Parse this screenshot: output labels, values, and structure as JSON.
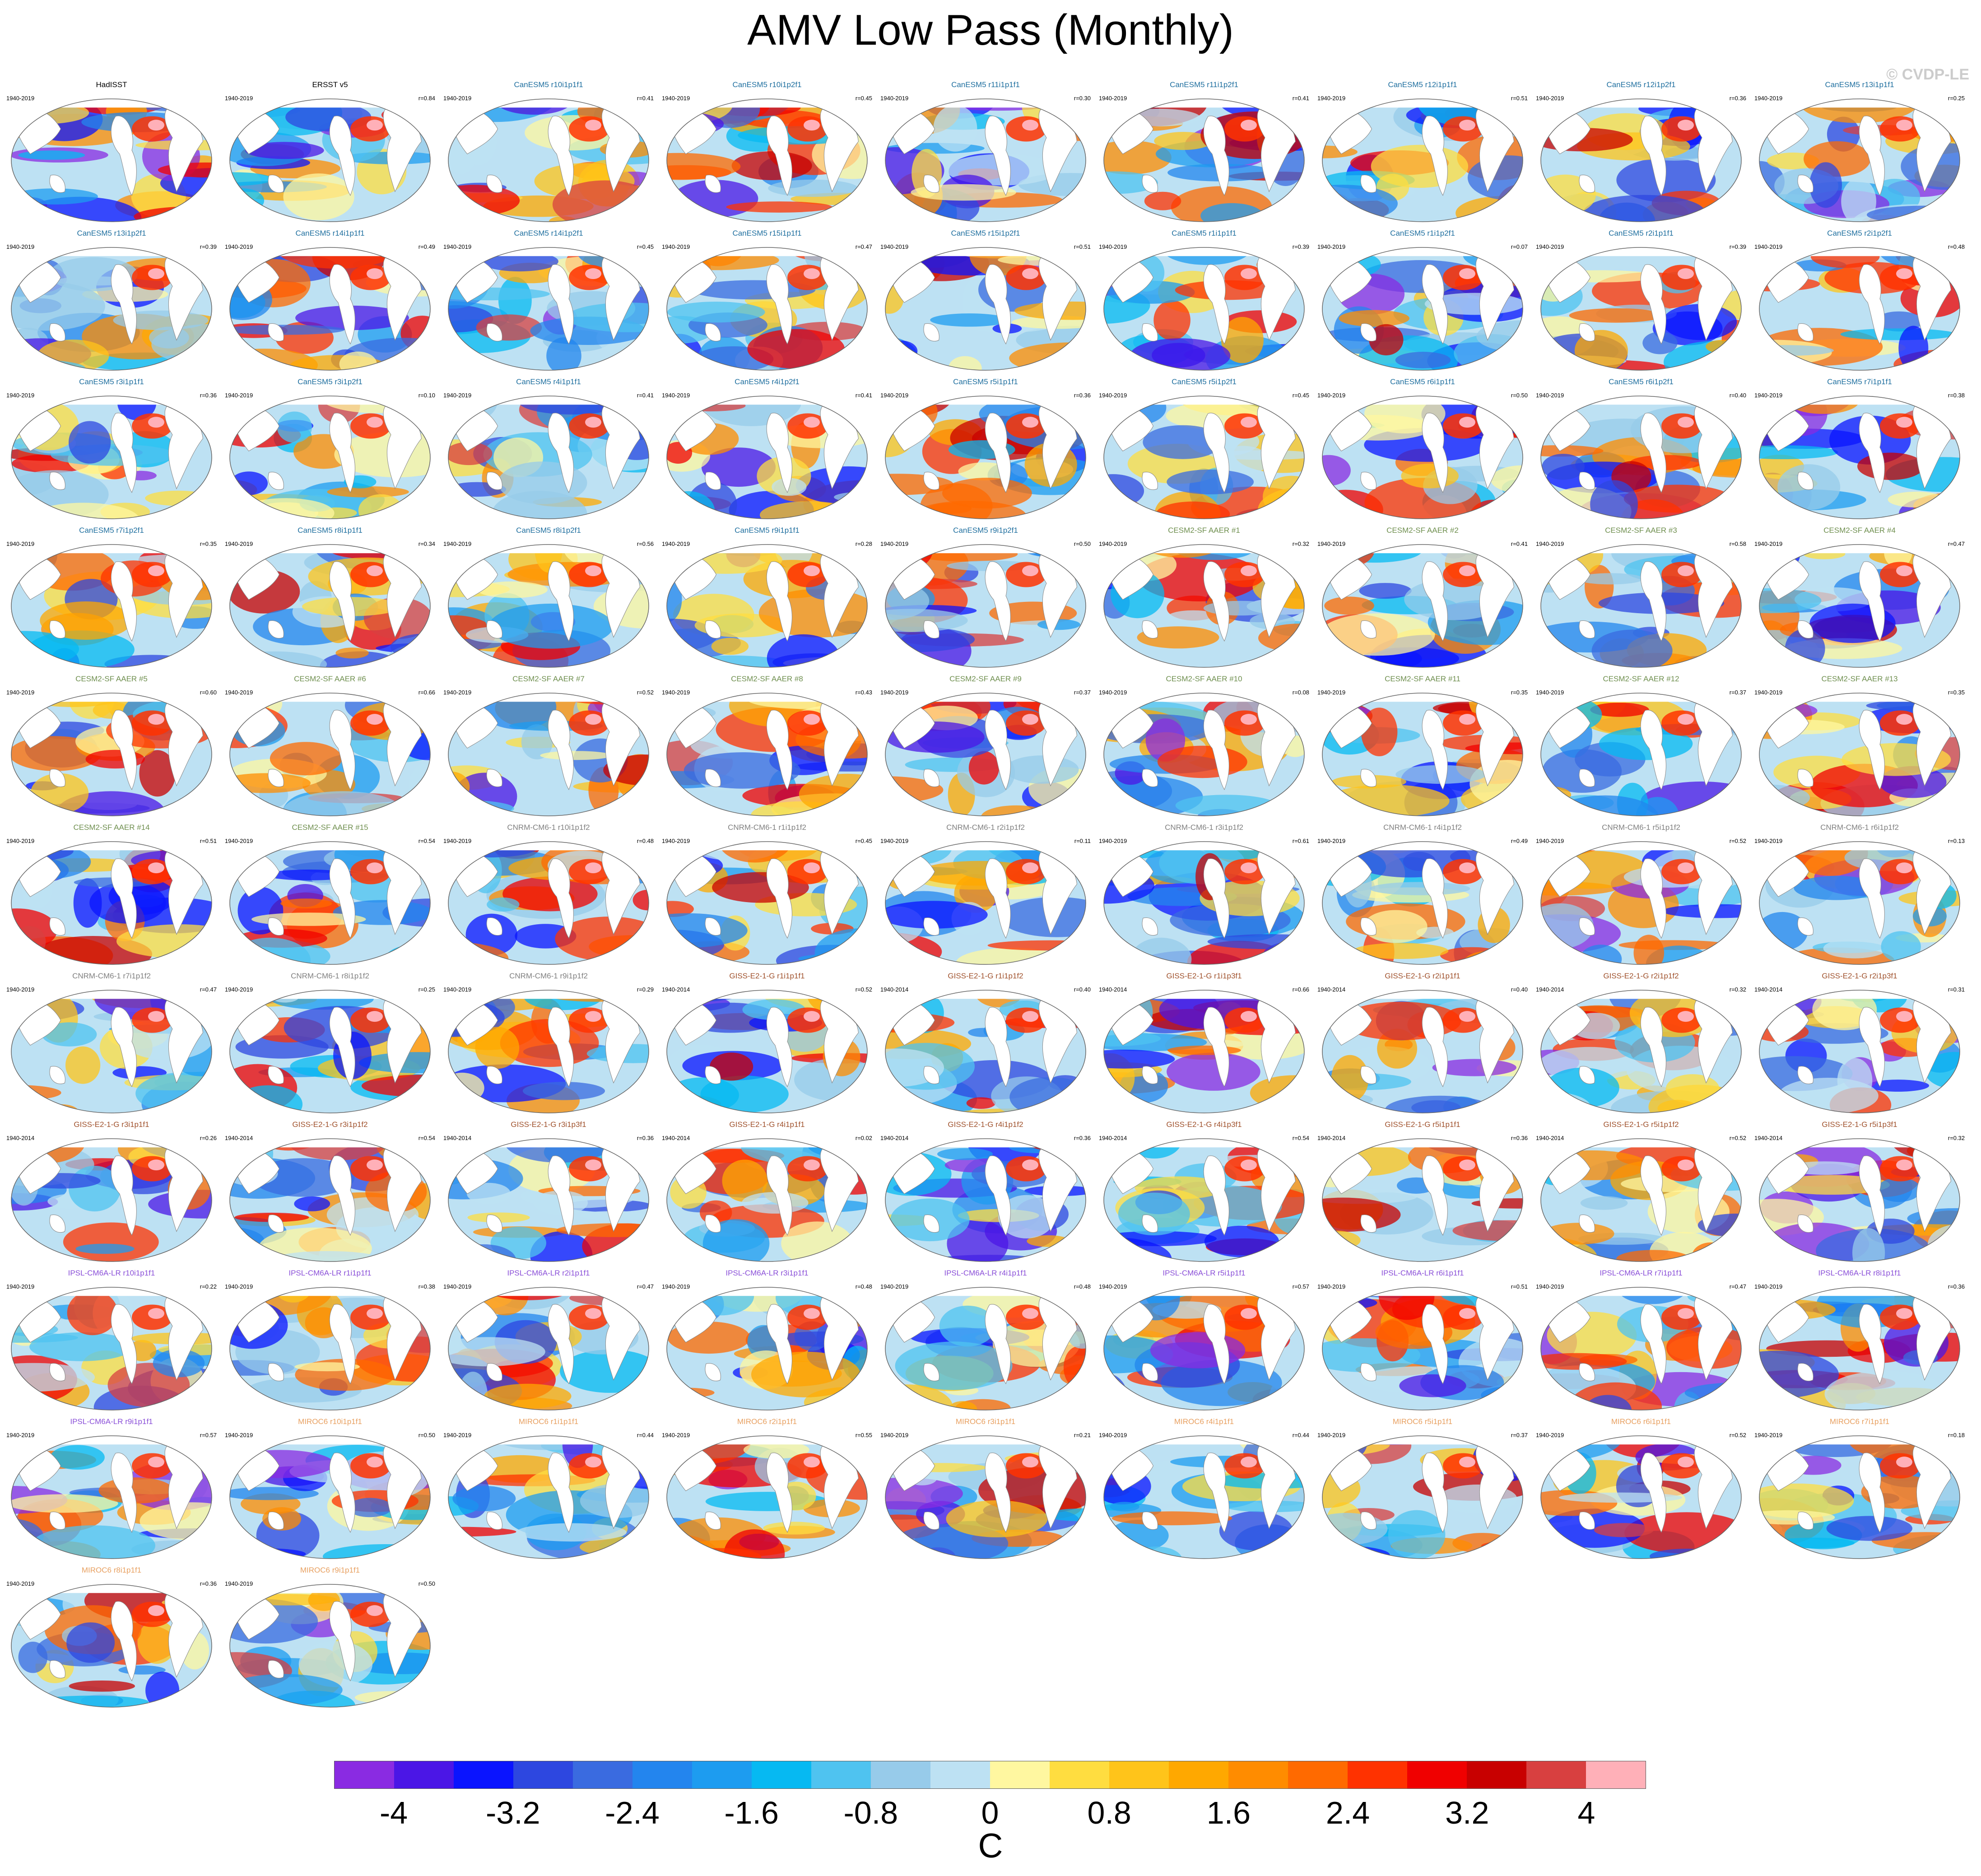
{
  "title": "AMV Low Pass (Monthly)",
  "watermark": "© CVDP-LE",
  "colorbar": {
    "units": "C",
    "tick_labels": [
      "-4",
      "-3.2",
      "-2.4",
      "-1.6",
      "-0.8",
      "0",
      "0.8",
      "1.6",
      "2.4",
      "3.2",
      "4"
    ],
    "colors": [
      "#8a2be2",
      "#4b16e6",
      "#0a14ff",
      "#2d47e0",
      "#3a6be0",
      "#2385ee",
      "#1d9cf0",
      "#06b9f2",
      "#4fc3f0",
      "#97cbea",
      "#bde1f3",
      "#fff7a0",
      "#ffdd40",
      "#ffc41a",
      "#ffa800",
      "#ff8c00",
      "#ff6a00",
      "#ff3200",
      "#f00000",
      "#c80000",
      "#d84040",
      "#ffb0b8"
    ]
  },
  "panels": [
    {
      "name": "HadISST",
      "period": "1940-2019",
      "r": "",
      "color": "#000000"
    },
    {
      "name": "ERSST v5",
      "period": "1940-2019",
      "r": "r=0.84",
      "color": "#000000"
    },
    {
      "name": "CanESM5 r10i1p1f1",
      "period": "1940-2019",
      "r": "r=0.41",
      "color": "#1f6f9f"
    },
    {
      "name": "CanESM5 r10i1p2f1",
      "period": "1940-2019",
      "r": "r=0.45",
      "color": "#1f6f9f"
    },
    {
      "name": "CanESM5 r11i1p1f1",
      "period": "1940-2019",
      "r": "r=0.30",
      "color": "#1f6f9f"
    },
    {
      "name": "CanESM5 r11i1p2f1",
      "period": "1940-2019",
      "r": "r=0.41",
      "color": "#1f6f9f"
    },
    {
      "name": "CanESM5 r12i1p1f1",
      "period": "1940-2019",
      "r": "r=0.51",
      "color": "#1f6f9f"
    },
    {
      "name": "CanESM5 r12i1p2f1",
      "period": "1940-2019",
      "r": "r=0.36",
      "color": "#1f6f9f"
    },
    {
      "name": "CanESM5 r13i1p1f1",
      "period": "1940-2019",
      "r": "r=0.25",
      "color": "#1f6f9f"
    },
    {
      "name": "CanESM5 r13i1p2f1",
      "period": "1940-2019",
      "r": "r=0.39",
      "color": "#1f6f9f"
    },
    {
      "name": "CanESM5 r14i1p1f1",
      "period": "1940-2019",
      "r": "r=0.49",
      "color": "#1f6f9f"
    },
    {
      "name": "CanESM5 r14i1p2f1",
      "period": "1940-2019",
      "r": "r=0.45",
      "color": "#1f6f9f"
    },
    {
      "name": "CanESM5 r15i1p1f1",
      "period": "1940-2019",
      "r": "r=0.47",
      "color": "#1f6f9f"
    },
    {
      "name": "CanESM5 r15i1p2f1",
      "period": "1940-2019",
      "r": "r=0.51",
      "color": "#1f6f9f"
    },
    {
      "name": "CanESM5 r1i1p1f1",
      "period": "1940-2019",
      "r": "r=0.39",
      "color": "#1f6f9f"
    },
    {
      "name": "CanESM5 r1i1p2f1",
      "period": "1940-2019",
      "r": "r=0.07",
      "color": "#1f6f9f"
    },
    {
      "name": "CanESM5 r2i1p1f1",
      "period": "1940-2019",
      "r": "r=0.39",
      "color": "#1f6f9f"
    },
    {
      "name": "CanESM5 r2i1p2f1",
      "period": "1940-2019",
      "r": "r=0.48",
      "color": "#1f6f9f"
    },
    {
      "name": "CanESM5 r3i1p1f1",
      "period": "1940-2019",
      "r": "r=0.36",
      "color": "#1f6f9f"
    },
    {
      "name": "CanESM5 r3i1p2f1",
      "period": "1940-2019",
      "r": "r=0.10",
      "color": "#1f6f9f"
    },
    {
      "name": "CanESM5 r4i1p1f1",
      "period": "1940-2019",
      "r": "r=0.41",
      "color": "#1f6f9f"
    },
    {
      "name": "CanESM5 r4i1p2f1",
      "period": "1940-2019",
      "r": "r=0.41",
      "color": "#1f6f9f"
    },
    {
      "name": "CanESM5 r5i1p1f1",
      "period": "1940-2019",
      "r": "r=0.36",
      "color": "#1f6f9f"
    },
    {
      "name": "CanESM5 r5i1p2f1",
      "period": "1940-2019",
      "r": "r=0.45",
      "color": "#1f6f9f"
    },
    {
      "name": "CanESM5 r6i1p1f1",
      "period": "1940-2019",
      "r": "r=0.50",
      "color": "#1f6f9f"
    },
    {
      "name": "CanESM5 r6i1p2f1",
      "period": "1940-2019",
      "r": "r=0.40",
      "color": "#1f6f9f"
    },
    {
      "name": "CanESM5 r7i1p1f1",
      "period": "1940-2019",
      "r": "r=0.38",
      "color": "#1f6f9f"
    },
    {
      "name": "CanESM5 r7i1p2f1",
      "period": "1940-2019",
      "r": "r=0.35",
      "color": "#1f6f9f"
    },
    {
      "name": "CanESM5 r8i1p1f1",
      "period": "1940-2019",
      "r": "r=0.34",
      "color": "#1f6f9f"
    },
    {
      "name": "CanESM5 r8i1p2f1",
      "period": "1940-2019",
      "r": "r=0.56",
      "color": "#1f6f9f"
    },
    {
      "name": "CanESM5 r9i1p1f1",
      "period": "1940-2019",
      "r": "r=0.28",
      "color": "#1f6f9f"
    },
    {
      "name": "CanESM5 r9i1p2f1",
      "period": "1940-2019",
      "r": "r=0.50",
      "color": "#1f6f9f"
    },
    {
      "name": "CESM2-SF AAER #1",
      "period": "1940-2019",
      "r": "r=0.32",
      "color": "#6f8f4f"
    },
    {
      "name": "CESM2-SF AAER #2",
      "period": "1940-2019",
      "r": "r=0.41",
      "color": "#6f8f4f"
    },
    {
      "name": "CESM2-SF AAER #3",
      "period": "1940-2019",
      "r": "r=0.58",
      "color": "#6f8f4f"
    },
    {
      "name": "CESM2-SF AAER #4",
      "period": "1940-2019",
      "r": "r=0.47",
      "color": "#6f8f4f"
    },
    {
      "name": "CESM2-SF AAER #5",
      "period": "1940-2019",
      "r": "r=0.60",
      "color": "#6f8f4f"
    },
    {
      "name": "CESM2-SF AAER #6",
      "period": "1940-2019",
      "r": "r=0.66",
      "color": "#6f8f4f"
    },
    {
      "name": "CESM2-SF AAER #7",
      "period": "1940-2019",
      "r": "r=0.52",
      "color": "#6f8f4f"
    },
    {
      "name": "CESM2-SF AAER #8",
      "period": "1940-2019",
      "r": "r=0.43",
      "color": "#6f8f4f"
    },
    {
      "name": "CESM2-SF AAER #9",
      "period": "1940-2019",
      "r": "r=0.37",
      "color": "#6f8f4f"
    },
    {
      "name": "CESM2-SF AAER #10",
      "period": "1940-2019",
      "r": "r=0.08",
      "color": "#6f8f4f"
    },
    {
      "name": "CESM2-SF AAER #11",
      "period": "1940-2019",
      "r": "r=0.35",
      "color": "#6f8f4f"
    },
    {
      "name": "CESM2-SF AAER #12",
      "period": "1940-2019",
      "r": "r=0.37",
      "color": "#6f8f4f"
    },
    {
      "name": "CESM2-SF AAER #13",
      "period": "1940-2019",
      "r": "r=0.35",
      "color": "#6f8f4f"
    },
    {
      "name": "CESM2-SF AAER #14",
      "period": "1940-2019",
      "r": "r=0.51",
      "color": "#6f8f4f"
    },
    {
      "name": "CESM2-SF AAER #15",
      "period": "1940-2019",
      "r": "r=0.54",
      "color": "#6f8f4f"
    },
    {
      "name": "CNRM-CM6-1 r10i1p1f2",
      "period": "1940-2019",
      "r": "r=0.48",
      "color": "#808080"
    },
    {
      "name": "CNRM-CM6-1 r1i1p1f2",
      "period": "1940-2019",
      "r": "r=0.45",
      "color": "#808080"
    },
    {
      "name": "CNRM-CM6-1 r2i1p1f2",
      "period": "1940-2019",
      "r": "r=0.11",
      "color": "#808080"
    },
    {
      "name": "CNRM-CM6-1 r3i1p1f2",
      "period": "1940-2019",
      "r": "r=0.61",
      "color": "#808080"
    },
    {
      "name": "CNRM-CM6-1 r4i1p1f2",
      "period": "1940-2019",
      "r": "r=0.49",
      "color": "#808080"
    },
    {
      "name": "CNRM-CM6-1 r5i1p1f2",
      "period": "1940-2019",
      "r": "r=0.52",
      "color": "#808080"
    },
    {
      "name": "CNRM-CM6-1 r6i1p1f2",
      "period": "1940-2019",
      "r": "r=0.13",
      "color": "#808080"
    },
    {
      "name": "CNRM-CM6-1 r7i1p1f2",
      "period": "1940-2019",
      "r": "r=0.47",
      "color": "#808080"
    },
    {
      "name": "CNRM-CM6-1 r8i1p1f2",
      "period": "1940-2019",
      "r": "r=0.25",
      "color": "#808080"
    },
    {
      "name": "CNRM-CM6-1 r9i1p1f2",
      "period": "1940-2019",
      "r": "r=0.29",
      "color": "#808080"
    },
    {
      "name": "GISS-E2-1-G r1i1p1f1",
      "period": "1940-2014",
      "r": "r=0.52",
      "color": "#a0522d"
    },
    {
      "name": "GISS-E2-1-G r1i1p1f2",
      "period": "1940-2014",
      "r": "r=0.40",
      "color": "#a0522d"
    },
    {
      "name": "GISS-E2-1-G r1i1p3f1",
      "period": "1940-2014",
      "r": "r=0.66",
      "color": "#a0522d"
    },
    {
      "name": "GISS-E2-1-G r2i1p1f1",
      "period": "1940-2014",
      "r": "r=0.40",
      "color": "#a0522d"
    },
    {
      "name": "GISS-E2-1-G r2i1p1f2",
      "period": "1940-2014",
      "r": "r=0.32",
      "color": "#a0522d"
    },
    {
      "name": "GISS-E2-1-G r2i1p3f1",
      "period": "1940-2014",
      "r": "r=0.31",
      "color": "#a0522d"
    },
    {
      "name": "GISS-E2-1-G r3i1p1f1",
      "period": "1940-2014",
      "r": "r=0.26",
      "color": "#a0522d"
    },
    {
      "name": "GISS-E2-1-G r3i1p1f2",
      "period": "1940-2014",
      "r": "r=0.54",
      "color": "#a0522d"
    },
    {
      "name": "GISS-E2-1-G r3i1p3f1",
      "period": "1940-2014",
      "r": "r=0.36",
      "color": "#a0522d"
    },
    {
      "name": "GISS-E2-1-G r4i1p1f1",
      "period": "1940-2014",
      "r": "r=0.02",
      "color": "#a0522d"
    },
    {
      "name": "GISS-E2-1-G r4i1p1f2",
      "period": "1940-2014",
      "r": "r=0.36",
      "color": "#a0522d"
    },
    {
      "name": "GISS-E2-1-G r4i1p3f1",
      "period": "1940-2014",
      "r": "r=0.54",
      "color": "#a0522d"
    },
    {
      "name": "GISS-E2-1-G r5i1p1f1",
      "period": "1940-2014",
      "r": "r=0.36",
      "color": "#a0522d"
    },
    {
      "name": "GISS-E2-1-G r5i1p1f2",
      "period": "1940-2014",
      "r": "r=0.52",
      "color": "#a0522d"
    },
    {
      "name": "GISS-E2-1-G r5i1p3f1",
      "period": "1940-2014",
      "r": "r=0.32",
      "color": "#a0522d"
    },
    {
      "name": "IPSL-CM6A-LR r10i1p1f1",
      "period": "1940-2019",
      "r": "r=0.22",
      "color": "#8a4fd8"
    },
    {
      "name": "IPSL-CM6A-LR r1i1p1f1",
      "period": "1940-2019",
      "r": "r=0.38",
      "color": "#8a4fd8"
    },
    {
      "name": "IPSL-CM6A-LR r2i1p1f1",
      "period": "1940-2019",
      "r": "r=0.47",
      "color": "#8a4fd8"
    },
    {
      "name": "IPSL-CM6A-LR r3i1p1f1",
      "period": "1940-2019",
      "r": "r=0.48",
      "color": "#8a4fd8"
    },
    {
      "name": "IPSL-CM6A-LR r4i1p1f1",
      "period": "1940-2019",
      "r": "r=0.48",
      "color": "#8a4fd8"
    },
    {
      "name": "IPSL-CM6A-LR r5i1p1f1",
      "period": "1940-2019",
      "r": "r=0.57",
      "color": "#8a4fd8"
    },
    {
      "name": "IPSL-CM6A-LR r6i1p1f1",
      "period": "1940-2019",
      "r": "r=0.51",
      "color": "#8a4fd8"
    },
    {
      "name": "IPSL-CM6A-LR r7i1p1f1",
      "period": "1940-2019",
      "r": "r=0.47",
      "color": "#8a4fd8"
    },
    {
      "name": "IPSL-CM6A-LR r8i1p1f1",
      "period": "1940-2019",
      "r": "r=0.36",
      "color": "#8a4fd8"
    },
    {
      "name": "IPSL-CM6A-LR r9i1p1f1",
      "period": "1940-2019",
      "r": "r=0.57",
      "color": "#8a4fd8"
    },
    {
      "name": "MIROC6 r10i1p1f1",
      "period": "1940-2019",
      "r": "r=0.50",
      "color": "#e8a060"
    },
    {
      "name": "MIROC6 r1i1p1f1",
      "period": "1940-2019",
      "r": "r=0.44",
      "color": "#e8a060"
    },
    {
      "name": "MIROC6 r2i1p1f1",
      "period": "1940-2019",
      "r": "r=0.55",
      "color": "#e8a060"
    },
    {
      "name": "MIROC6 r3i1p1f1",
      "period": "1940-2019",
      "r": "r=0.21",
      "color": "#e8a060"
    },
    {
      "name": "MIROC6 r4i1p1f1",
      "period": "1940-2019",
      "r": "r=0.44",
      "color": "#e8a060"
    },
    {
      "name": "MIROC6 r5i1p1f1",
      "period": "1940-2019",
      "r": "r=0.37",
      "color": "#e8a060"
    },
    {
      "name": "MIROC6 r6i1p1f1",
      "period": "1940-2019",
      "r": "r=0.52",
      "color": "#e8a060"
    },
    {
      "name": "MIROC6 r7i1p1f1",
      "period": "1940-2019",
      "r": "r=0.18",
      "color": "#e8a060"
    },
    {
      "name": "MIROC6 r8i1p1f1",
      "period": "1940-2019",
      "r": "r=0.36",
      "color": "#e8a060"
    },
    {
      "name": "MIROC6 r9i1p1f1",
      "period": "1940-2019",
      "r": "r=0.50",
      "color": "#e8a060"
    }
  ]
}
